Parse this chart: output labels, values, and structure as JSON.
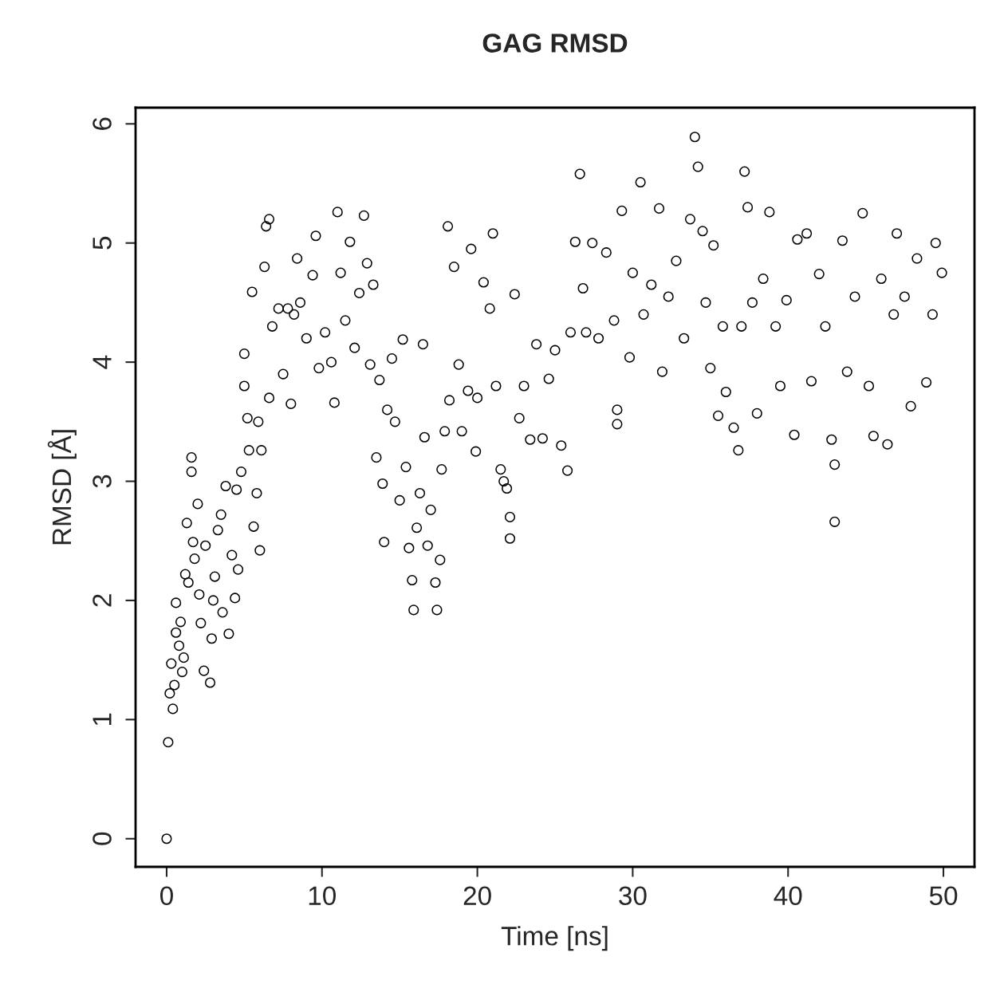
{
  "chart_data": {
    "type": "scatter",
    "title": "GAG RMSD",
    "xlabel": "Time [ns]",
    "ylabel": "RMSD [Å]",
    "xlim": [
      -2,
      52
    ],
    "ylim": [
      -0.236,
      6.136
    ],
    "xticks": [
      0,
      10,
      20,
      30,
      40,
      50
    ],
    "yticks": [
      0,
      1,
      2,
      3,
      4,
      5,
      6
    ],
    "grid": false,
    "marker": "circle",
    "series": [
      {
        "color": "#000000",
        "x": [
          0,
          0.1,
          0.2,
          0.3,
          0.4,
          0.5,
          0.6,
          0.6,
          0.8,
          0.9,
          1.0,
          1.1,
          1.2,
          1.3,
          1.4,
          1.6,
          1.6,
          1.7,
          1.8,
          2.0,
          2.1,
          2.2,
          2.4,
          2.5,
          2.8,
          2.9,
          3.0,
          3.1,
          3.3,
          3.5,
          3.6,
          3.8,
          4.0,
          4.2,
          4.4,
          4.5,
          4.6,
          4.8,
          5.0,
          5.0,
          5.2,
          5.3,
          5.5,
          5.6,
          5.8,
          5.9,
          6.0,
          6.1,
          6.3,
          6.4,
          6.6,
          6.6,
          6.8,
          7.2,
          7.5,
          7.8,
          8.0,
          8.2,
          8.4,
          8.6,
          9.0,
          9.4,
          9.6,
          9.8,
          10.2,
          10.6,
          10.8,
          11.0,
          11.2,
          11.5,
          11.8,
          12.1,
          12.4,
          12.7,
          12.9,
          13.1,
          13.3,
          13.5,
          13.7,
          13.9,
          14.0,
          14.2,
          14.5,
          14.7,
          15.0,
          15.2,
          15.4,
          15.6,
          15.8,
          15.9,
          16.1,
          16.3,
          16.5,
          16.6,
          16.8,
          17.0,
          17.3,
          17.4,
          17.6,
          17.7,
          17.9,
          18.1,
          18.2,
          18.5,
          18.8,
          19.0,
          19.4,
          19.6,
          19.9,
          20.0,
          20.4,
          20.8,
          21.0,
          21.2,
          21.5,
          21.7,
          21.9,
          22.1,
          22.1,
          22.4,
          22.7,
          23.0,
          23.4,
          23.8,
          24.2,
          24.6,
          25.0,
          25.4,
          25.8,
          26.0,
          26.3,
          26.6,
          26.8,
          27.0,
          27.4,
          27.8,
          28.3,
          28.8,
          29.0,
          29.0,
          29.3,
          29.8,
          30.0,
          30.5,
          30.7,
          31.2,
          31.7,
          31.9,
          32.3,
          32.8,
          33.3,
          33.7,
          34.0,
          34.2,
          34.5,
          34.7,
          35.0,
          35.2,
          35.5,
          35.8,
          36.0,
          36.5,
          36.8,
          37.0,
          37.2,
          37.4,
          37.7,
          38.0,
          38.4,
          38.8,
          39.2,
          39.5,
          39.9,
          40.4,
          40.6,
          41.2,
          41.5,
          42.0,
          42.4,
          42.8,
          43.0,
          43.0,
          43.5,
          43.8,
          44.3,
          44.8,
          45.2,
          45.5,
          46.0,
          46.4,
          46.8,
          47.0,
          47.5,
          47.9,
          48.3,
          48.9,
          49.3,
          49.5,
          49.9
        ],
        "values": [
          0,
          0.81,
          1.22,
          1.47,
          1.09,
          1.29,
          1.73,
          1.98,
          1.62,
          1.82,
          1.4,
          1.52,
          2.22,
          2.65,
          2.15,
          3.2,
          3.08,
          2.49,
          2.35,
          2.81,
          2.05,
          1.81,
          1.41,
          2.46,
          1.31,
          1.68,
          2.0,
          2.2,
          2.59,
          2.72,
          1.9,
          2.96,
          1.72,
          2.38,
          2.02,
          2.93,
          2.26,
          3.08,
          3.8,
          4.07,
          3.53,
          3.26,
          4.59,
          2.62,
          2.9,
          3.5,
          2.42,
          3.26,
          4.8,
          5.14,
          5.2,
          3.7,
          4.3,
          4.45,
          3.9,
          4.45,
          3.65,
          4.4,
          4.87,
          4.5,
          4.2,
          4.73,
          5.06,
          3.95,
          4.25,
          4.0,
          3.66,
          5.26,
          4.75,
          4.35,
          5.01,
          4.12,
          4.58,
          5.23,
          4.83,
          3.98,
          4.65,
          3.2,
          3.85,
          2.98,
          2.49,
          3.6,
          4.03,
          3.5,
          2.84,
          4.19,
          3.12,
          2.44,
          2.17,
          1.92,
          2.61,
          2.9,
          4.15,
          3.37,
          2.46,
          2.76,
          2.15,
          1.92,
          2.34,
          3.1,
          3.42,
          5.14,
          3.68,
          4.8,
          3.98,
          3.42,
          3.76,
          4.95,
          3.25,
          3.7,
          4.67,
          4.45,
          5.08,
          3.8,
          3.1,
          3.0,
          2.94,
          2.52,
          2.7,
          4.57,
          3.53,
          3.8,
          3.35,
          4.15,
          3.36,
          3.86,
          4.1,
          3.3,
          3.09,
          4.25,
          5.01,
          5.58,
          4.62,
          4.25,
          5.0,
          4.2,
          4.92,
          4.35,
          3.48,
          3.6,
          5.27,
          4.04,
          4.75,
          5.51,
          4.4,
          4.65,
          5.29,
          3.92,
          4.55,
          4.85,
          4.2,
          5.2,
          5.89,
          5.64,
          5.1,
          4.5,
          3.95,
          4.98,
          3.55,
          4.3,
          3.75,
          3.45,
          3.26,
          4.3,
          5.6,
          5.3,
          4.5,
          3.57,
          4.7,
          5.26,
          4.3,
          3.8,
          4.52,
          3.39,
          5.03,
          5.08,
          3.84,
          4.74,
          4.3,
          3.35,
          2.66,
          3.14,
          5.02,
          3.92,
          4.55,
          5.25,
          3.8,
          3.38,
          4.7,
          3.31,
          4.4,
          5.08,
          4.55,
          3.63,
          4.87,
          3.83,
          4.4,
          5.0,
          4.75
        ]
      }
    ]
  }
}
